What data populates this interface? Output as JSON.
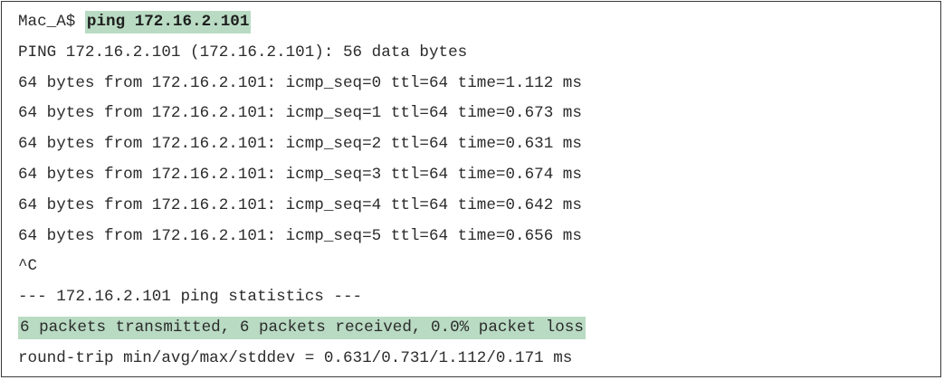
{
  "terminal": {
    "prompt": "Mac_A$ ",
    "command": "ping 172.16.2.101",
    "lines": [
      "PING 172.16.2.101 (172.16.2.101): 56 data bytes",
      "64 bytes from 172.16.2.101: icmp_seq=0 ttl=64 time=1.112 ms",
      "64 bytes from 172.16.2.101: icmp_seq=1 ttl=64 time=0.673 ms",
      "64 bytes from 172.16.2.101: icmp_seq=2 ttl=64 time=0.631 ms",
      "64 bytes from 172.16.2.101: icmp_seq=3 ttl=64 time=0.674 ms",
      "64 bytes from 172.16.2.101: icmp_seq=4 ttl=64 time=0.642 ms",
      "64 bytes from 172.16.2.101: icmp_seq=5 ttl=64 time=0.656 ms",
      "^C",
      "--- 172.16.2.101 ping statistics ---"
    ],
    "summary": "6 packets transmitted, 6 packets received, 0.0% packet loss",
    "rtt": "round-trip min/avg/max/stddev = 0.631/0.731/1.112/0.171 ms",
    "highlight_color": "#b9dbc3"
  }
}
